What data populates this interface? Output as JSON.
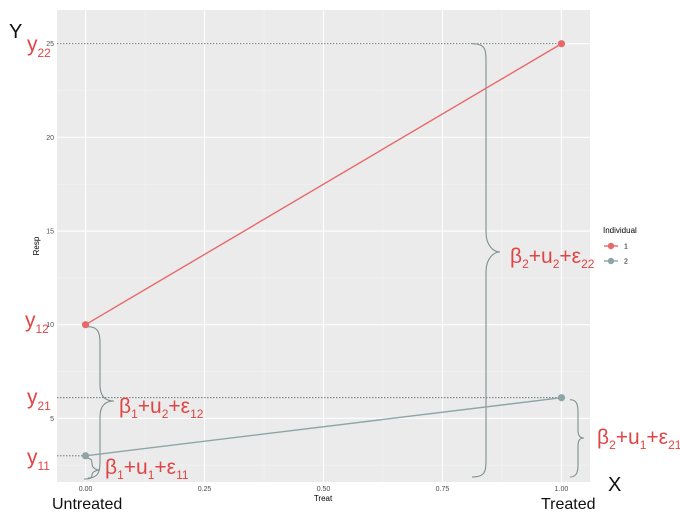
{
  "chart_data": {
    "type": "line",
    "xlabel": "Treat",
    "ylabel": "Resp",
    "xlim": [
      -0.06,
      1.06
    ],
    "ylim": [
      1.6,
      26.8
    ],
    "xticks": [
      "0.00",
      "0.25",
      "0.50",
      "0.75",
      "1.00"
    ],
    "xtick_values": [
      0,
      0.25,
      0.5,
      0.75,
      1.0
    ],
    "yticks": [
      "5",
      "10",
      "15",
      "20",
      "25"
    ],
    "ytick_values": [
      5,
      10,
      15,
      20,
      25
    ],
    "grid": true,
    "legend_title": "Individual",
    "legend_position": "right",
    "series": [
      {
        "name": "1",
        "color": "#e8696a",
        "x": [
          0,
          1
        ],
        "values": [
          10,
          25
        ]
      },
      {
        "name": "2",
        "color": "#8fa5a5",
        "x": [
          0,
          1
        ],
        "values": [
          3,
          6.1
        ]
      }
    ],
    "reference_lines": [
      {
        "y": 25,
        "x_to": 1
      },
      {
        "y": 6.1,
        "x_to": 1
      },
      {
        "y": 3,
        "x_to": 0
      }
    ]
  },
  "annotations": {
    "y_label": "Y",
    "x_label": "X",
    "untreated": "Untreated",
    "treated": "Treated",
    "y22": {
      "main": "y",
      "sub": "22"
    },
    "y12": {
      "main": "y",
      "sub": "12"
    },
    "y21": {
      "main": "y",
      "sub": "21"
    },
    "y11": {
      "main": "y",
      "sub": "11"
    },
    "b2u2e22": [
      "β",
      "2",
      "+u",
      "2",
      "+ε",
      "22"
    ],
    "b1u2e12": [
      "β",
      "1",
      "+u",
      "2",
      "+ε",
      "12"
    ],
    "b1u1e11": [
      "β",
      "1",
      "+u",
      "1",
      "+ε",
      "11"
    ],
    "b2u1e21": [
      "β",
      "2",
      "+u",
      "1",
      "+ε",
      "21"
    ]
  },
  "colors": {
    "panel": "#ebebeb",
    "grid_major": "#ffffff",
    "grid_minor": "#f3f3f3",
    "annotation": "#e04545",
    "brace": "#7f9090"
  }
}
